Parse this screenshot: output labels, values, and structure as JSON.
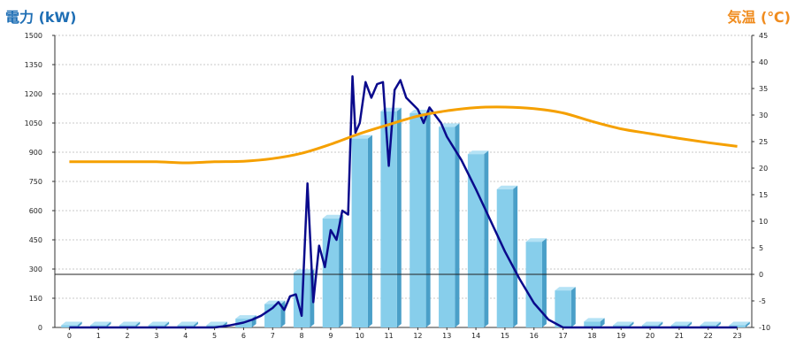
{
  "chart_data": {
    "type": "bar",
    "left_axis_title": "電力 (kW)",
    "right_axis_title": "気温 (℃)",
    "x_ticks": [
      "0",
      "1",
      "2",
      "3",
      "4",
      "5",
      "6",
      "7",
      "8",
      "9",
      "10",
      "11",
      "12",
      "13",
      "14",
      "15",
      "16",
      "17",
      "18",
      "19",
      "20",
      "21",
      "22",
      "23"
    ],
    "y_left_ticks": [
      "1500",
      "1350",
      "1200",
      "1050",
      "900",
      "750",
      "600",
      "450",
      "300",
      "150",
      "0"
    ],
    "y_right_ticks": [
      "45",
      "40",
      "35",
      "30",
      "25",
      "20",
      "15",
      "10",
      "5",
      "0",
      "-5",
      "-10"
    ],
    "y_left_range": [
      0,
      1500
    ],
    "y_right_range": [
      -10,
      45
    ],
    "grid": true,
    "series": [
      {
        "kind": "bar",
        "axis": "left",
        "color": "#87ceeb",
        "x": [
          0,
          1,
          2,
          3,
          4,
          5,
          6,
          7,
          8,
          9,
          10,
          11,
          12,
          13,
          14,
          15,
          16,
          17,
          18,
          19,
          20,
          21,
          22,
          23
        ],
        "values": [
          0,
          0,
          0,
          0,
          0,
          5,
          45,
          120,
          280,
          560,
          970,
          1110,
          1100,
          1030,
          890,
          710,
          440,
          190,
          30,
          0,
          0,
          0,
          0,
          0
        ]
      },
      {
        "kind": "line",
        "axis": "left",
        "color": "#0a0a8c",
        "x": [
          0,
          1,
          2,
          3,
          4,
          5,
          5.5,
          6,
          6.3,
          6.6,
          7,
          7.2,
          7.4,
          7.6,
          7.8,
          8,
          8.2,
          8.4,
          8.6,
          8.8,
          9,
          9.2,
          9.4,
          9.6,
          9.75,
          9.85,
          10,
          10.2,
          10.4,
          10.6,
          10.8,
          11,
          11.2,
          11.4,
          11.6,
          11.8,
          12,
          12.2,
          12.4,
          12.6,
          12.8,
          13,
          13.5,
          14,
          14.5,
          15,
          15.5,
          16,
          16.5,
          17,
          17.5,
          18,
          19,
          20,
          21,
          22,
          23
        ],
        "values": [
          0,
          0,
          0,
          0,
          0,
          0,
          10,
          25,
          40,
          60,
          100,
          130,
          90,
          160,
          170,
          60,
          740,
          130,
          420,
          310,
          500,
          450,
          600,
          580,
          1290,
          1000,
          1050,
          1260,
          1180,
          1250,
          1260,
          830,
          1220,
          1270,
          1180,
          1150,
          1120,
          1050,
          1130,
          1090,
          1050,
          980,
          860,
          710,
          550,
          390,
          250,
          125,
          40,
          0,
          0,
          0,
          0,
          0,
          0,
          0,
          0
        ],
        "smooth": false
      },
      {
        "kind": "line",
        "axis": "right",
        "color": "#f5a000",
        "x": [
          0,
          1,
          2,
          3,
          4,
          5,
          6,
          7,
          8,
          9,
          10,
          11,
          12,
          13,
          14,
          15,
          16,
          17,
          18,
          19,
          20,
          21,
          22,
          23
        ],
        "values": [
          21.2,
          21.2,
          21.2,
          21.2,
          21.0,
          21.2,
          21.3,
          21.8,
          22.8,
          24.5,
          26.5,
          28.2,
          29.8,
          30.8,
          31.4,
          31.5,
          31.2,
          30.4,
          28.8,
          27.4,
          26.5,
          25.6,
          24.8,
          24.1
        ],
        "smooth": true
      }
    ]
  }
}
